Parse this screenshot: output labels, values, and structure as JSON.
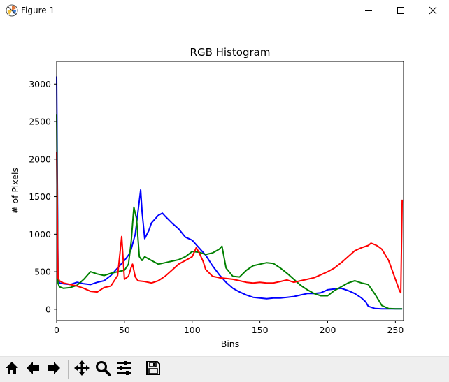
{
  "window": {
    "title": "Figure 1",
    "app_icon": "matplotlib-icon",
    "controls": [
      "minimize-icon",
      "maximize-icon",
      "close-icon"
    ]
  },
  "toolbar": {
    "buttons": [
      "home-icon",
      "back-icon",
      "forward-icon",
      "pan-icon",
      "zoom-icon",
      "configure-subplots-icon",
      "save-icon"
    ]
  },
  "chart_data": {
    "type": "line",
    "title": "RGB Histogram",
    "xlabel": "Bins",
    "ylabel": "# of Pixels",
    "xlim": [
      0,
      256
    ],
    "ylim": [
      -150,
      3300
    ],
    "xticks": [
      "0",
      "50",
      "100",
      "150",
      "200",
      "250"
    ],
    "yticks": [
      "0",
      "500",
      "1000",
      "1500",
      "2000",
      "2500",
      "3000"
    ],
    "grid": false,
    "legend": "none",
    "series": [
      {
        "color": "#0000ff",
        "x": [
          0,
          1,
          2,
          5,
          10,
          15,
          20,
          25,
          30,
          35,
          40,
          45,
          50,
          53,
          55,
          58,
          60,
          62,
          63,
          65,
          68,
          70,
          75,
          78,
          80,
          85,
          90,
          95,
          100,
          105,
          110,
          115,
          120,
          125,
          130,
          135,
          140,
          145,
          150,
          155,
          160,
          165,
          170,
          175,
          180,
          185,
          190,
          195,
          200,
          205,
          210,
          215,
          220,
          225,
          228,
          230,
          235,
          240,
          245,
          250,
          255
        ],
        "values": [
          3100,
          480,
          350,
          340,
          330,
          360,
          340,
          330,
          360,
          380,
          450,
          550,
          650,
          720,
          800,
          1000,
          1300,
          1590,
          1300,
          940,
          1050,
          1150,
          1250,
          1280,
          1240,
          1150,
          1070,
          960,
          920,
          820,
          720,
          580,
          460,
          360,
          280,
          230,
          190,
          160,
          150,
          140,
          150,
          150,
          160,
          170,
          190,
          210,
          210,
          220,
          260,
          270,
          280,
          250,
          210,
          150,
          100,
          40,
          10,
          5,
          5,
          5,
          5
        ]
      },
      {
        "color": "#008000",
        "x": [
          0,
          1,
          2,
          5,
          10,
          15,
          20,
          25,
          30,
          35,
          40,
          45,
          50,
          53,
          55,
          57,
          59,
          61,
          63,
          65,
          70,
          75,
          80,
          85,
          90,
          95,
          100,
          105,
          110,
          115,
          120,
          122,
          125,
          130,
          135,
          140,
          145,
          150,
          155,
          160,
          165,
          170,
          175,
          180,
          185,
          190,
          195,
          200,
          205,
          210,
          215,
          220,
          225,
          230,
          235,
          240,
          245,
          250,
          255
        ],
        "values": [
          2600,
          350,
          300,
          280,
          290,
          320,
          400,
          500,
          470,
          450,
          480,
          500,
          520,
          600,
          900,
          1360,
          1200,
          700,
          650,
          700,
          650,
          600,
          620,
          640,
          660,
          700,
          770,
          760,
          730,
          750,
          800,
          840,
          550,
          440,
          430,
          520,
          580,
          600,
          620,
          610,
          550,
          480,
          400,
          320,
          260,
          210,
          180,
          180,
          250,
          300,
          350,
          380,
          350,
          330,
          200,
          50,
          10,
          5,
          5
        ]
      },
      {
        "color": "#ff0000",
        "x": [
          0,
          1,
          2,
          5,
          10,
          15,
          20,
          25,
          30,
          35,
          40,
          45,
          48,
          50,
          53,
          55,
          56,
          58,
          60,
          65,
          70,
          75,
          80,
          85,
          90,
          95,
          100,
          103,
          105,
          108,
          110,
          115,
          120,
          125,
          130,
          135,
          140,
          145,
          150,
          155,
          160,
          165,
          170,
          175,
          180,
          185,
          190,
          195,
          200,
          205,
          210,
          215,
          220,
          225,
          230,
          232,
          235,
          237,
          240,
          245,
          250,
          253,
          254,
          255
        ],
        "values": [
          2100,
          420,
          380,
          350,
          330,
          310,
          280,
          240,
          230,
          290,
          310,
          450,
          970,
          400,
          440,
          560,
          600,
          430,
          380,
          370,
          350,
          380,
          440,
          520,
          600,
          650,
          700,
          820,
          760,
          640,
          530,
          440,
          420,
          410,
          400,
          380,
          360,
          350,
          360,
          350,
          350,
          370,
          390,
          360,
          380,
          400,
          420,
          460,
          500,
          550,
          620,
          700,
          780,
          820,
          850,
          880,
          860,
          840,
          800,
          650,
          400,
          250,
          220,
          1460
        ]
      }
    ]
  }
}
